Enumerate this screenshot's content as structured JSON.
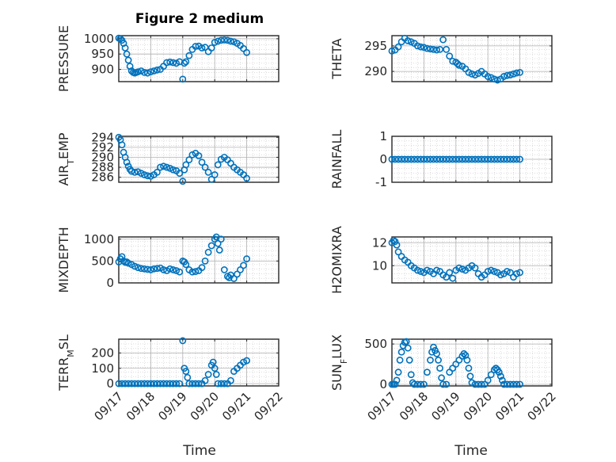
{
  "title": "Figure 2 medium",
  "xlabel": "Time",
  "date_ticks": [
    "09/17",
    "09/18",
    "09/19",
    "09/20",
    "09/21",
    "09/22"
  ],
  "marker_color": "#0072BD",
  "chart_data": [
    {
      "type": "scatter",
      "id": "pressure",
      "ylabel_parts": [
        {
          "t": "PRESSURE"
        }
      ],
      "ylim": [
        860,
        1010
      ],
      "yticks": [
        900,
        950,
        1000
      ],
      "x": [
        0.0,
        0.05,
        0.1,
        0.15,
        0.2,
        0.25,
        0.3,
        0.35,
        0.4,
        0.45,
        0.5,
        0.55,
        0.6,
        0.7,
        0.8,
        0.9,
        1.0,
        1.1,
        1.2,
        1.3,
        1.4,
        1.5,
        1.6,
        1.7,
        1.8,
        1.9,
        2.0,
        2.05,
        2.1,
        2.2,
        2.3,
        2.4,
        2.5,
        2.6,
        2.7,
        2.8,
        2.9,
        3.0,
        3.1,
        3.2,
        3.3,
        3.4,
        3.5,
        3.6,
        3.7,
        3.8,
        3.9,
        4.0
      ],
      "y": [
        1002,
        1000,
        995,
        985,
        970,
        950,
        930,
        910,
        895,
        890,
        888,
        890,
        892,
        895,
        890,
        888,
        892,
        895,
        898,
        900,
        910,
        922,
        924,
        922,
        920,
        925,
        868,
        920,
        925,
        945,
        965,
        975,
        976,
        970,
        972,
        958,
        970,
        988,
        992,
        995,
        996,
        995,
        992,
        990,
        985,
        978,
        968,
        955
      ]
    },
    {
      "type": "scatter",
      "id": "theta",
      "ylabel_parts": [
        {
          "t": "THETA"
        }
      ],
      "ylim": [
        288,
        297
      ],
      "yticks": [
        290,
        295
      ],
      "x": [
        0.0,
        0.1,
        0.2,
        0.3,
        0.4,
        0.5,
        0.6,
        0.7,
        0.8,
        0.9,
        1.0,
        1.1,
        1.2,
        1.3,
        1.4,
        1.5,
        1.6,
        1.7,
        1.8,
        1.9,
        2.0,
        2.05,
        2.1,
        2.2,
        2.3,
        2.4,
        2.5,
        2.6,
        2.7,
        2.8,
        2.9,
        3.0,
        3.1,
        3.2,
        3.3,
        3.4,
        3.5,
        3.6,
        3.7,
        3.8,
        3.9,
        4.0
      ],
      "y": [
        294.0,
        294.2,
        294.8,
        295.8,
        296.5,
        296.0,
        295.8,
        295.5,
        295.0,
        294.8,
        294.7,
        294.5,
        294.4,
        294.3,
        294.2,
        294.3,
        296.2,
        294.3,
        293.0,
        292.0,
        291.8,
        291.5,
        291.2,
        291.0,
        290.5,
        289.8,
        289.5,
        289.3,
        289.6,
        290.0,
        289.5,
        289.0,
        288.8,
        288.5,
        288.3,
        288.5,
        289.0,
        289.2,
        289.3,
        289.5,
        289.7,
        289.8
      ]
    },
    {
      "type": "scatter",
      "id": "air_temp",
      "ylabel_parts": [
        {
          "t": "AIR"
        },
        {
          "t": "T",
          "sub": true
        },
        {
          "t": "EMP"
        }
      ],
      "ylim": [
        285,
        294.2
      ],
      "yticks": [
        286,
        288,
        290,
        292,
        294
      ],
      "x": [
        0.0,
        0.05,
        0.1,
        0.15,
        0.2,
        0.25,
        0.3,
        0.35,
        0.4,
        0.5,
        0.6,
        0.7,
        0.8,
        0.9,
        1.0,
        1.1,
        1.2,
        1.3,
        1.4,
        1.5,
        1.6,
        1.7,
        1.8,
        1.9,
        2.0,
        2.05,
        2.1,
        2.2,
        2.3,
        2.4,
        2.5,
        2.6,
        2.7,
        2.8,
        2.9,
        3.0,
        3.1,
        3.2,
        3.3,
        3.4,
        3.5,
        3.6,
        3.7,
        3.8,
        3.9,
        4.0
      ],
      "y": [
        294.0,
        293.5,
        292.5,
        291.0,
        290.0,
        289.0,
        288.2,
        287.6,
        287.2,
        287.0,
        287.1,
        286.8,
        286.5,
        286.3,
        286.2,
        286.5,
        287.0,
        288.0,
        288.2,
        288.0,
        287.8,
        287.5,
        287.3,
        286.8,
        285.2,
        287.5,
        288.5,
        289.5,
        290.5,
        290.8,
        290.3,
        289.0,
        288.0,
        287.0,
        285.6,
        286.5,
        288.5,
        289.6,
        290.0,
        289.5,
        288.8,
        288.0,
        287.5,
        287.0,
        286.5,
        285.8
      ]
    },
    {
      "type": "scatter",
      "id": "rainfall",
      "ylabel_parts": [
        {
          "t": "RAINFALL"
        }
      ],
      "ylim": [
        -1,
        1
      ],
      "yticks": [
        -1,
        0,
        1
      ],
      "x": [
        0.0,
        0.1,
        0.2,
        0.3,
        0.4,
        0.5,
        0.6,
        0.7,
        0.8,
        0.9,
        1.0,
        1.1,
        1.2,
        1.3,
        1.4,
        1.5,
        1.6,
        1.7,
        1.8,
        1.9,
        2.0,
        2.1,
        2.2,
        2.3,
        2.4,
        2.5,
        2.6,
        2.7,
        2.8,
        2.9,
        3.0,
        3.1,
        3.2,
        3.3,
        3.4,
        3.5,
        3.6,
        3.7,
        3.8,
        3.9,
        4.0
      ],
      "y": [
        0,
        0,
        0,
        0,
        0,
        0,
        0,
        0,
        0,
        0,
        0,
        0,
        0,
        0,
        0,
        0,
        0,
        0,
        0,
        0,
        0,
        0,
        0,
        0,
        0,
        0,
        0,
        0,
        0,
        0,
        0,
        0,
        0,
        0,
        0,
        0,
        0,
        0,
        0,
        0,
        0
      ]
    },
    {
      "type": "scatter",
      "id": "mixdepth",
      "ylabel_parts": [
        {
          "t": "MIXDEPTH"
        }
      ],
      "ylim": [
        0,
        1050
      ],
      "yticks": [
        0,
        500,
        1000
      ],
      "x": [
        0.0,
        0.05,
        0.1,
        0.15,
        0.2,
        0.25,
        0.3,
        0.4,
        0.5,
        0.6,
        0.7,
        0.8,
        0.9,
        1.0,
        1.1,
        1.2,
        1.3,
        1.4,
        1.5,
        1.6,
        1.7,
        1.8,
        1.9,
        2.0,
        2.05,
        2.1,
        2.2,
        2.3,
        2.4,
        2.5,
        2.6,
        2.7,
        2.8,
        2.9,
        3.0,
        3.05,
        3.1,
        3.15,
        3.2,
        3.3,
        3.4,
        3.45,
        3.5,
        3.6,
        3.7,
        3.8,
        3.9,
        4.0
      ],
      "y": [
        480,
        550,
        600,
        500,
        470,
        480,
        450,
        420,
        380,
        350,
        330,
        320,
        310,
        300,
        320,
        330,
        340,
        300,
        280,
        320,
        300,
        280,
        250,
        500,
        480,
        420,
        300,
        250,
        260,
        280,
        350,
        500,
        700,
        850,
        1000,
        1050,
        900,
        750,
        1000,
        300,
        150,
        120,
        180,
        100,
        200,
        300,
        400,
        550
      ]
    },
    {
      "type": "scatter",
      "id": "h2omixra",
      "ylabel_parts": [
        {
          "t": "H2OMIXRA"
        }
      ],
      "ylim": [
        8.5,
        12.5
      ],
      "yticks": [
        10,
        12
      ],
      "x": [
        0.0,
        0.05,
        0.1,
        0.15,
        0.2,
        0.3,
        0.4,
        0.5,
        0.6,
        0.7,
        0.8,
        0.9,
        1.0,
        1.1,
        1.2,
        1.3,
        1.4,
        1.5,
        1.6,
        1.7,
        1.8,
        1.9,
        2.0,
        2.1,
        2.2,
        2.3,
        2.4,
        2.5,
        2.6,
        2.7,
        2.8,
        2.9,
        3.0,
        3.1,
        3.2,
        3.3,
        3.4,
        3.5,
        3.6,
        3.7,
        3.8,
        3.9,
        4.0
      ],
      "y": [
        12.0,
        12.2,
        12.1,
        11.8,
        11.2,
        10.8,
        10.5,
        10.3,
        10.0,
        9.8,
        9.6,
        9.5,
        9.4,
        9.6,
        9.5,
        9.3,
        9.6,
        9.5,
        9.2,
        9.0,
        9.4,
        8.9,
        9.6,
        9.8,
        9.7,
        9.6,
        9.8,
        10.0,
        9.8,
        9.3,
        9.0,
        9.2,
        9.5,
        9.6,
        9.5,
        9.4,
        9.2,
        9.3,
        9.5,
        9.4,
        9.0,
        9.3,
        9.4
      ]
    },
    {
      "type": "scatter",
      "id": "terr_msl",
      "ylabel_parts": [
        {
          "t": "TERR"
        },
        {
          "t": "M",
          "sub": true
        },
        {
          "t": "SL"
        }
      ],
      "ylim": [
        -15,
        290
      ],
      "yticks": [
        0,
        100,
        200
      ],
      "x": [
        0.0,
        0.1,
        0.2,
        0.3,
        0.4,
        0.5,
        0.6,
        0.7,
        0.8,
        0.9,
        1.0,
        1.1,
        1.2,
        1.3,
        1.4,
        1.5,
        1.6,
        1.7,
        1.8,
        1.9,
        2.0,
        2.05,
        2.1,
        2.15,
        2.2,
        2.3,
        2.4,
        2.5,
        2.6,
        2.7,
        2.8,
        2.9,
        2.95,
        3.0,
        3.05,
        3.1,
        3.2,
        3.3,
        3.4,
        3.5,
        3.6,
        3.7,
        3.8,
        3.9,
        4.0
      ],
      "y": [
        0,
        0,
        0,
        0,
        0,
        0,
        0,
        0,
        0,
        0,
        0,
        0,
        0,
        0,
        0,
        0,
        0,
        0,
        0,
        0,
        280,
        100,
        80,
        40,
        0,
        0,
        0,
        0,
        0,
        20,
        60,
        120,
        140,
        100,
        60,
        0,
        0,
        0,
        0,
        20,
        80,
        100,
        120,
        140,
        150
      ]
    },
    {
      "type": "scatter",
      "id": "sun_flux",
      "ylabel_parts": [
        {
          "t": "SUN"
        },
        {
          "t": "F",
          "sub": true
        },
        {
          "t": "LUX"
        }
      ],
      "ylim": [
        -20,
        560
      ],
      "yticks": [
        0,
        500
      ],
      "x": [
        0.0,
        0.05,
        0.1,
        0.15,
        0.2,
        0.25,
        0.3,
        0.35,
        0.4,
        0.45,
        0.5,
        0.55,
        0.6,
        0.65,
        0.7,
        0.8,
        0.9,
        1.0,
        1.1,
        1.2,
        1.25,
        1.3,
        1.35,
        1.4,
        1.45,
        1.5,
        1.55,
        1.6,
        1.7,
        1.8,
        1.9,
        2.0,
        2.1,
        2.2,
        2.25,
        2.3,
        2.35,
        2.4,
        2.45,
        2.5,
        2.6,
        2.7,
        2.8,
        2.9,
        3.0,
        3.1,
        3.2,
        3.25,
        3.3,
        3.35,
        3.4,
        3.45,
        3.5,
        3.6,
        3.7,
        3.8,
        3.9,
        4.0
      ],
      "y": [
        0,
        0,
        0,
        50,
        150,
        300,
        400,
        480,
        520,
        530,
        450,
        300,
        120,
        20,
        0,
        0,
        0,
        0,
        150,
        300,
        400,
        460,
        420,
        380,
        300,
        200,
        80,
        0,
        0,
        150,
        200,
        250,
        300,
        350,
        380,
        360,
        300,
        200,
        100,
        20,
        0,
        0,
        0,
        0,
        50,
        120,
        180,
        200,
        180,
        150,
        100,
        50,
        0,
        0,
        0,
        0,
        0,
        0
      ]
    }
  ]
}
